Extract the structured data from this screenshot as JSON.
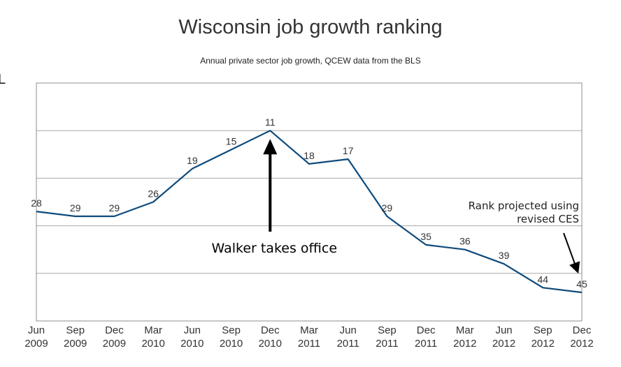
{
  "chart_data": {
    "type": "line",
    "title": "Wisconsin job growth ranking",
    "subtitle": "Annual private sector job growth, QCEW data from the BLS",
    "xlabel": "",
    "ylabel": "",
    "categories": [
      [
        "Jun",
        "2009"
      ],
      [
        "Sep",
        "2009"
      ],
      [
        "Dec",
        "2009"
      ],
      [
        "Mar",
        "2010"
      ],
      [
        "Jun",
        "2010"
      ],
      [
        "Sep",
        "2010"
      ],
      [
        "Dec",
        "2010"
      ],
      [
        "Mar",
        "2011"
      ],
      [
        "Jun",
        "2011"
      ],
      [
        "Sep",
        "2011"
      ],
      [
        "Dec",
        "2011"
      ],
      [
        "Mar",
        "2012"
      ],
      [
        "Jun",
        "2012"
      ],
      [
        "Sep",
        "2012"
      ],
      [
        "Dec",
        "2012"
      ]
    ],
    "series": [
      {
        "name": "Rank",
        "values": [
          28,
          29,
          29,
          26,
          19,
          15,
          11,
          18,
          17,
          29,
          35,
          36,
          39,
          44,
          45
        ]
      }
    ],
    "ylim": [
      51,
      1
    ],
    "y_gridlines": [
      11,
      21,
      31,
      41
    ],
    "grid": true,
    "line_color": "#0e4a7b",
    "annotations": [
      {
        "text": "Walker takes office",
        "target_index": 6
      },
      {
        "text_lines": [
          "Rank projected using",
          "revised CES"
        ],
        "target_index": 14
      }
    ]
  }
}
